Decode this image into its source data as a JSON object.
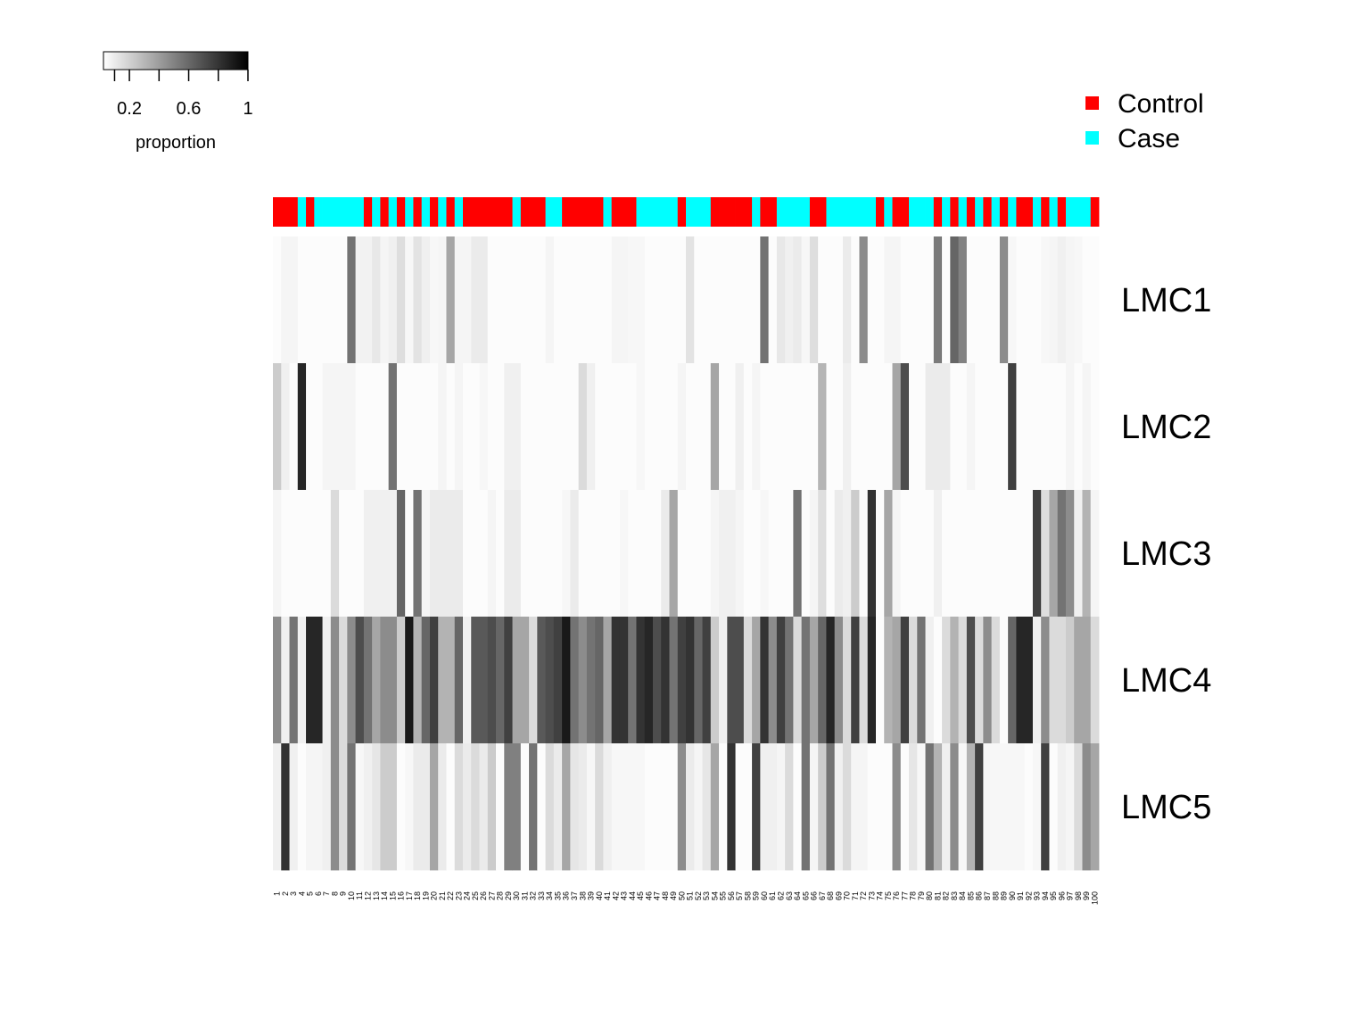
{
  "chart_data": {
    "type": "heatmap",
    "title": "",
    "xlabel": "",
    "ylabel": "",
    "columns": [
      "1",
      "2",
      "3",
      "4",
      "5",
      "6",
      "7",
      "8",
      "9",
      "10",
      "11",
      "12",
      "13",
      "14",
      "15",
      "16",
      "17",
      "18",
      "19",
      "20",
      "21",
      "22",
      "23",
      "24",
      "25",
      "26",
      "27",
      "28",
      "29",
      "30",
      "31",
      "32",
      "33",
      "34",
      "35",
      "36",
      "37",
      "38",
      "39",
      "40",
      "41",
      "42",
      "43",
      "44",
      "45",
      "46",
      "47",
      "48",
      "49",
      "50",
      "51",
      "52",
      "53",
      "54",
      "55",
      "56",
      "57",
      "58",
      "59",
      "60",
      "61",
      "62",
      "63",
      "64",
      "65",
      "66",
      "67",
      "68",
      "69",
      "70",
      "71",
      "72",
      "73",
      "74",
      "75",
      "76",
      "77",
      "78",
      "79",
      "80",
      "81",
      "82",
      "83",
      "84",
      "85",
      "86",
      "87",
      "88",
      "89",
      "90",
      "91",
      "92",
      "93",
      "94",
      "95",
      "96",
      "97",
      "98",
      "99",
      "100"
    ],
    "rows": [
      "LMC1",
      "LMC2",
      "LMC3",
      "LMC4",
      "LMC5"
    ],
    "groups": [
      "Control",
      "Control",
      "Control",
      "Case",
      "Control",
      "Case",
      "Case",
      "Case",
      "Case",
      "Case",
      "Case",
      "Control",
      "Case",
      "Control",
      "Case",
      "Control",
      "Case",
      "Control",
      "Case",
      "Control",
      "Case",
      "Control",
      "Case",
      "Control",
      "Control",
      "Control",
      "Control",
      "Control",
      "Control",
      "Case",
      "Control",
      "Control",
      "Control",
      "Case",
      "Case",
      "Control",
      "Control",
      "Control",
      "Control",
      "Control",
      "Case",
      "Control",
      "Control",
      "Control",
      "Case",
      "Case",
      "Case",
      "Case",
      "Case",
      "Control",
      "Case",
      "Case",
      "Case",
      "Control",
      "Control",
      "Control",
      "Control",
      "Control",
      "Case",
      "Control",
      "Control",
      "Case",
      "Case",
      "Case",
      "Case",
      "Control",
      "Control",
      "Case",
      "Case",
      "Case",
      "Case",
      "Case",
      "Case",
      "Control",
      "Case",
      "Control",
      "Control",
      "Case",
      "Case",
      "Case",
      "Control",
      "Case",
      "Control",
      "Case",
      "Control",
      "Case",
      "Control",
      "Case",
      "Control",
      "Case",
      "Control",
      "Control",
      "Case",
      "Control",
      "Case",
      "Control",
      "Case",
      "Case",
      "Case",
      "Control"
    ],
    "values": [
      [
        0.01,
        0.04,
        0.04,
        0.01,
        0.01,
        0.01,
        0.01,
        0.01,
        0.01,
        0.55,
        0.05,
        0.05,
        0.09,
        0.04,
        0.06,
        0.13,
        0.03,
        0.11,
        0.06,
        0.03,
        0.04,
        0.35,
        0.04,
        0.04,
        0.08,
        0.08,
        0.01,
        0.01,
        0.01,
        0.01,
        0.01,
        0.01,
        0.01,
        0.04,
        0.01,
        0.01,
        0.01,
        0.01,
        0.01,
        0.01,
        0.01,
        0.04,
        0.04,
        0.03,
        0.03,
        0.01,
        0.01,
        0.01,
        0.01,
        0.01,
        0.11,
        0.01,
        0.01,
        0.01,
        0.01,
        0.01,
        0.01,
        0.01,
        0.01,
        0.55,
        0.01,
        0.09,
        0.06,
        0.08,
        0.03,
        0.13,
        0.01,
        0.01,
        0.01,
        0.08,
        0.01,
        0.45,
        0.01,
        0.01,
        0.04,
        0.04,
        0.01,
        0.01,
        0.01,
        0.01,
        0.52,
        0.01,
        0.6,
        0.49,
        0.01,
        0.01,
        0.01,
        0.01,
        0.45,
        0.03,
        0.01,
        0.01,
        0.01,
        0.03,
        0.04,
        0.06,
        0.04,
        0.03,
        0.01,
        0.01
      ],
      [
        0.2,
        0.06,
        0.01,
        0.85,
        0.01,
        0.01,
        0.04,
        0.04,
        0.04,
        0.04,
        0.01,
        0.01,
        0.01,
        0.01,
        0.55,
        0.01,
        0.01,
        0.01,
        0.01,
        0.01,
        0.04,
        0.01,
        0.04,
        0.01,
        0.01,
        0.03,
        0.01,
        0.01,
        0.06,
        0.06,
        0.01,
        0.01,
        0.01,
        0.01,
        0.01,
        0.01,
        0.01,
        0.14,
        0.06,
        0.01,
        0.01,
        0.01,
        0.01,
        0.01,
        0.03,
        0.01,
        0.01,
        0.01,
        0.01,
        0.04,
        0.01,
        0.01,
        0.01,
        0.35,
        0.01,
        0.01,
        0.06,
        0.01,
        0.04,
        0.01,
        0.01,
        0.01,
        0.01,
        0.01,
        0.01,
        0.01,
        0.29,
        0.01,
        0.01,
        0.06,
        0.01,
        0.01,
        0.01,
        0.01,
        0.01,
        0.35,
        0.7,
        0.01,
        0.01,
        0.08,
        0.08,
        0.08,
        0.01,
        0.01,
        0.04,
        0.01,
        0.01,
        0.01,
        0.01,
        0.75,
        0.01,
        0.01,
        0.01,
        0.01,
        0.01,
        0.01,
        0.04,
        0.01,
        0.04,
        0.01
      ],
      [
        0.04,
        0.01,
        0.01,
        0.01,
        0.01,
        0.01,
        0.01,
        0.14,
        0.01,
        0.01,
        0.01,
        0.06,
        0.06,
        0.06,
        0.06,
        0.6,
        0.01,
        0.55,
        0.04,
        0.08,
        0.08,
        0.08,
        0.08,
        0.01,
        0.01,
        0.01,
        0.04,
        0.01,
        0.08,
        0.08,
        0.01,
        0.01,
        0.01,
        0.01,
        0.01,
        0.03,
        0.08,
        0.01,
        0.01,
        0.01,
        0.01,
        0.01,
        0.03,
        0.01,
        0.01,
        0.01,
        0.01,
        0.08,
        0.35,
        0.01,
        0.01,
        0.01,
        0.01,
        0.04,
        0.06,
        0.06,
        0.04,
        0.01,
        0.01,
        0.03,
        0.01,
        0.01,
        0.01,
        0.55,
        0.01,
        0.04,
        0.13,
        0.01,
        0.08,
        0.06,
        0.2,
        0.01,
        0.8,
        0.01,
        0.35,
        0.04,
        0.01,
        0.01,
        0.01,
        0.01,
        0.06,
        0.01,
        0.01,
        0.01,
        0.01,
        0.01,
        0.01,
        0.01,
        0.01,
        0.01,
        0.01,
        0.01,
        0.75,
        0.13,
        0.35,
        0.55,
        0.45,
        0.06,
        0.3,
        0.04
      ],
      [
        0.45,
        0.06,
        0.55,
        0.06,
        0.85,
        0.85,
        0.06,
        0.45,
        0.14,
        0.45,
        0.7,
        0.55,
        0.35,
        0.45,
        0.45,
        0.2,
        0.9,
        0.3,
        0.6,
        0.75,
        0.3,
        0.3,
        0.6,
        0.06,
        0.65,
        0.65,
        0.7,
        0.6,
        0.75,
        0.35,
        0.35,
        0.14,
        0.65,
        0.7,
        0.75,
        0.9,
        0.55,
        0.45,
        0.55,
        0.6,
        0.35,
        0.8,
        0.8,
        0.55,
        0.8,
        0.85,
        0.7,
        0.8,
        0.55,
        0.75,
        0.8,
        0.6,
        0.75,
        0.2,
        0.06,
        0.7,
        0.7,
        0.14,
        0.35,
        0.8,
        0.45,
        0.75,
        0.55,
        0.14,
        0.55,
        0.35,
        0.6,
        0.85,
        0.45,
        0.14,
        0.75,
        0.14,
        0.85,
        0.01,
        0.3,
        0.35,
        0.75,
        0.14,
        0.55,
        0.06,
        0.01,
        0.14,
        0.3,
        0.14,
        0.7,
        0.14,
        0.45,
        0.14,
        0.01,
        0.6,
        0.85,
        0.85,
        0.06,
        0.45,
        0.14,
        0.14,
        0.2,
        0.35,
        0.35,
        0.14
      ],
      [
        0.06,
        0.8,
        0.06,
        0.01,
        0.04,
        0.04,
        0.06,
        0.45,
        0.14,
        0.55,
        0.03,
        0.06,
        0.1,
        0.2,
        0.2,
        0.01,
        0.03,
        0.08,
        0.08,
        0.35,
        0.08,
        0.01,
        0.14,
        0.08,
        0.14,
        0.08,
        0.2,
        0.01,
        0.5,
        0.5,
        0.01,
        0.55,
        0.01,
        0.14,
        0.08,
        0.35,
        0.1,
        0.08,
        0.03,
        0.14,
        0.06,
        0.03,
        0.03,
        0.03,
        0.03,
        0.01,
        0.01,
        0.01,
        0.01,
        0.45,
        0.08,
        0.04,
        0.1,
        0.35,
        0.01,
        0.8,
        0.01,
        0.01,
        0.75,
        0.06,
        0.06,
        0.04,
        0.14,
        0.01,
        0.55,
        0.04,
        0.2,
        0.55,
        0.06,
        0.14,
        0.04,
        0.04,
        0.01,
        0.01,
        0.01,
        0.45,
        0.01,
        0.1,
        0.03,
        0.55,
        0.3,
        0.06,
        0.45,
        0.03,
        0.3,
        0.75,
        0.03,
        0.03,
        0.03,
        0.03,
        0.03,
        0.01,
        0.03,
        0.75,
        0.01,
        0.06,
        0.04,
        0.14,
        0.45,
        0.35
      ]
    ],
    "colorbar": {
      "label": "proportion",
      "ticks": [
        "0.2",
        "0.6",
        "1"
      ],
      "low_color": "#ffffff",
      "high_color": "#000000"
    },
    "legend": {
      "position": "top-right",
      "entries": [
        {
          "label": "Control",
          "color": "#ff0000"
        },
        {
          "label": "Case",
          "color": "#00ffff"
        }
      ]
    }
  }
}
